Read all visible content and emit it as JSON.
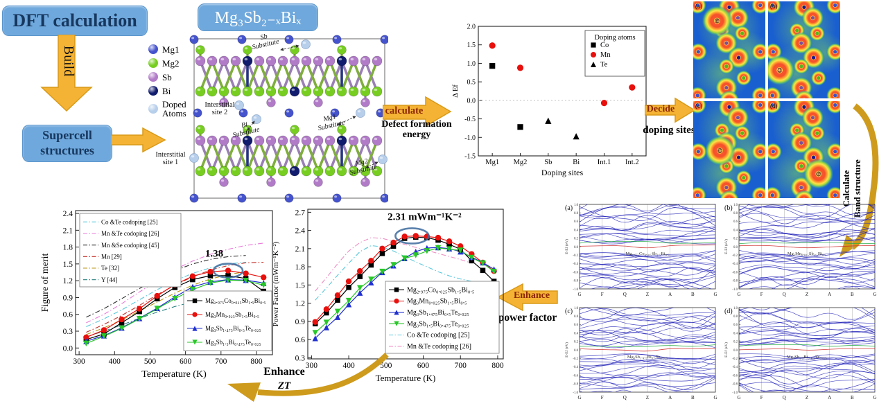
{
  "workflow": {
    "dft_label": "DFT calculation",
    "build_label": "Build",
    "supercell_lines": [
      "Supercell",
      "structures"
    ],
    "formula_title": "Mg₃Sb₂₋ₓBiₓ",
    "calculate_label": "calculate",
    "calculate_sub_lines": [
      "Defect formation",
      "energy"
    ],
    "decide_label": "Decide",
    "decide_sub": "doping sites",
    "band_arrow_lines": [
      "Calculate",
      "Band structure"
    ],
    "enhance_pf_label": "Enhance",
    "enhance_pf_sub": "power factor",
    "enhance_zt_lines": [
      "Enhance",
      "ZT"
    ]
  },
  "colors": {
    "arrow_gold": "#F5B335",
    "box_blue": "#6FA8DC",
    "box_text_navy": "#17375E",
    "arrow_text_maroon": "#8B2703",
    "annotation_ellipse_blue": "#3D6B9E"
  },
  "crystal": {
    "legend": [
      {
        "label": "Mg1",
        "color": "#4553CD"
      },
      {
        "label": "Mg2",
        "color": "#77CE21"
      },
      {
        "label": "Sb",
        "color": "#B17BC8"
      },
      {
        "label": "Bi",
        "color": "#111C6E"
      },
      {
        "label": "Doped Atoms",
        "color": "#B7CFEB"
      }
    ],
    "annotations": [
      {
        "line1": "Sb",
        "line2": "Substitute"
      },
      {
        "line1": "Interstitial",
        "line2": "site 2"
      },
      {
        "line1": "Bi",
        "line2": "Substitute"
      },
      {
        "line1": "Mg1",
        "line2": "Substitute"
      },
      {
        "line1": "Mg2",
        "line2": "Substitute"
      },
      {
        "line1": "Interstitial",
        "line2": "site 1"
      }
    ]
  },
  "charge_density": {
    "panels": [
      {
        "label": "(a)",
        "atom": "Co"
      },
      {
        "label": "(b)",
        "atom": "Mn"
      },
      {
        "label": "(c)",
        "atom": "Te"
      },
      {
        "label": "(d)",
        "atom": "Te"
      }
    ]
  },
  "band_charts": {
    "ylabel": "E-Ef (eV)",
    "ylim": [
      -1.0,
      1.0
    ],
    "xticks": [
      "G",
      "F",
      "Q",
      "Z",
      "A",
      "B",
      "G"
    ],
    "panels": [
      {
        "label": "(a)",
        "formula": "Mg₂.₉₇₅Co₀.₀₂₅Sb₁.₅Bi₀.₅"
      },
      {
        "label": "(b)",
        "formula": "Mg₃Mn₀.₀₂₅Sb₁.₅Bi₀.₅"
      },
      {
        "label": "(c)",
        "formula": "Mg₃Sb₁.₄₇₅Bi₀.₅Te₀.₀₂₅"
      },
      {
        "label": "(d)",
        "formula": "Mg₃Sb₁.₅Bi₀.₄₇₅Te₀.₀₂₅"
      }
    ]
  },
  "chart_data": [
    {
      "id": "defect_formation",
      "type": "scatter",
      "xlabel": "Doping sites",
      "ylabel": "Δ Ef",
      "legend_title": "Doping atoms",
      "categories": [
        "Mg1",
        "Mg2",
        "Sb",
        "Bi",
        "Int.1",
        "Int.2"
      ],
      "ylim": [
        -1.5,
        2.0
      ],
      "yticks": [
        2.0,
        1.5,
        1.0,
        0.5,
        0.0,
        -0.5,
        -1.0,
        -1.5
      ],
      "zero_line": true,
      "series": [
        {
          "name": "Co",
          "marker": "square",
          "color": "#000000",
          "values": [
            0.93,
            -0.72,
            null,
            null,
            null,
            null
          ]
        },
        {
          "name": "Mn",
          "marker": "circle",
          "color": "#E8100C",
          "values": [
            1.48,
            0.88,
            null,
            null,
            -0.07,
            0.35
          ]
        },
        {
          "name": "Te",
          "marker": "triangle",
          "color": "#000000",
          "values": [
            null,
            null,
            -0.55,
            -0.97,
            null,
            null
          ]
        }
      ]
    },
    {
      "id": "figure_of_merit",
      "type": "line",
      "xlabel": "Temperature (K)",
      "ylabel": "Figure of merit",
      "xlim": [
        290,
        845
      ],
      "ylim": [
        -0.12,
        2.45
      ],
      "xticks": [
        300,
        400,
        500,
        600,
        700,
        800
      ],
      "yticks": [
        0.0,
        0.3,
        0.6,
        0.9,
        1.2,
        1.5,
        1.8,
        2.1,
        2.4
      ],
      "x": [
        320,
        370,
        420,
        470,
        520,
        570,
        620,
        670,
        720,
        770,
        820
      ],
      "annotation": {
        "text": "1.38",
        "x": 720,
        "y": 1.38
      },
      "series": [
        {
          "name": "Mg₂.₉₇₅Co₀.₀₂₅Sb₁.₅Bi₀.₅",
          "marker": "square",
          "color": "#000000",
          "values": [
            0.15,
            0.25,
            0.45,
            0.65,
            0.88,
            1.08,
            1.22,
            1.29,
            1.29,
            1.24,
            1.01
          ]
        },
        {
          "name": "Mg₃Mn₀.₀₂₅Sb₁.₅Bi₀.₅",
          "marker": "circle",
          "color": "#E8100C",
          "values": [
            0.19,
            0.32,
            0.51,
            0.7,
            0.93,
            1.13,
            1.28,
            1.36,
            1.38,
            1.33,
            1.26
          ]
        },
        {
          "name": "Mg₃Sb₁.₄₇₅Bi₀.₅Te₀.₀₂₅",
          "marker": "triangle",
          "color": "#2030D0",
          "values": [
            0.12,
            0.22,
            0.36,
            0.53,
            0.71,
            0.91,
            1.09,
            1.18,
            1.22,
            1.21,
            1.16
          ]
        },
        {
          "name": "Mg₃Sb₁.₅Bi₀.₄₇₅Te₀.₀₂₅",
          "marker": "triangle-down",
          "color": "#28C828",
          "values": [
            0.08,
            0.21,
            0.35,
            0.52,
            0.7,
            0.88,
            1.04,
            1.16,
            1.21,
            1.2,
            1.12
          ]
        },
        {
          "name": "Co &Te codoping [25]",
          "dash": true,
          "color": "#58C8DC",
          "values": [
            0.38,
            0.52,
            0.68,
            0.86,
            1.04,
            1.2,
            1.33,
            1.43,
            1.5,
            1.53,
            null
          ]
        },
        {
          "name": "Mn &Te codoping [26]",
          "dash": true,
          "color": "#E878D8",
          "values": [
            0.45,
            0.6,
            0.79,
            1.0,
            1.2,
            1.4,
            1.55,
            1.67,
            1.76,
            1.83,
            1.87
          ]
        },
        {
          "name": "Mn &Se codoping [45]",
          "dash": true,
          "color": "#303030",
          "values": [
            0.55,
            0.7,
            0.88,
            1.06,
            1.24,
            1.38,
            1.5,
            1.58,
            1.63,
            1.65,
            null
          ]
        },
        {
          "name": "Mn [29]",
          "dash": true,
          "color": "#C03028",
          "values": [
            0.28,
            0.42,
            0.58,
            0.76,
            0.95,
            1.12,
            1.27,
            1.39,
            1.47,
            1.52,
            1.53
          ]
        },
        {
          "name": "Te [32]",
          "dash": true,
          "color": "#B89410",
          "values": [
            0.24,
            0.36,
            0.5,
            0.66,
            0.82,
            0.98,
            1.12,
            1.23,
            1.31,
            1.36,
            null
          ]
        },
        {
          "name": "Y [44]",
          "dash": true,
          "color": "#2A8080",
          "values": [
            0.2,
            0.3,
            0.41,
            0.53,
            0.64,
            0.74,
            0.82,
            0.88,
            0.9,
            null,
            null
          ]
        }
      ]
    },
    {
      "id": "power_factor",
      "type": "line",
      "xlabel": "Temperature (K)",
      "ylabel": "Power Factor (mWm⁻¹K⁻²)",
      "xlim": [
        290,
        815
      ],
      "ylim": [
        0.28,
        2.75
      ],
      "xticks": [
        300,
        400,
        500,
        600,
        700,
        800
      ],
      "yticks": [
        0.3,
        0.6,
        0.9,
        1.2,
        1.5,
        1.8,
        2.1,
        2.4,
        2.7
      ],
      "x": [
        310,
        340,
        370,
        400,
        430,
        460,
        490,
        520,
        550,
        580,
        610,
        640,
        670,
        700,
        730,
        760,
        790
      ],
      "annotation": {
        "text": "2.31 mWm⁻¹K⁻²",
        "x": 570,
        "y": 2.31
      },
      "series": [
        {
          "name": "Mg₂.₉₇₅Co₀.₀₂₅Sb₁.₅Bi₀.₅",
          "marker": "square",
          "color": "#000000",
          "values": [
            0.86,
            1.04,
            1.25,
            1.46,
            1.64,
            1.83,
            2.02,
            2.14,
            2.27,
            2.29,
            2.28,
            2.24,
            2.17,
            2.09,
            1.9,
            1.74,
            1.56
          ]
        },
        {
          "name": "Mg₃Mn₀.₀₂₅Sb₁.₅Bi₀.₅",
          "marker": "circle",
          "color": "#E8100C",
          "values": [
            0.89,
            1.1,
            1.33,
            1.56,
            1.73,
            1.9,
            2.1,
            2.2,
            2.3,
            2.31,
            2.3,
            2.28,
            2.22,
            2.14,
            2.01,
            1.87,
            1.73
          ]
        },
        {
          "name": "Mg₃Sb₁.₄₇₅Bi₀.₅Te₀.₀₂₅",
          "marker": "triangle",
          "color": "#2030D0",
          "values": [
            0.62,
            0.8,
            0.97,
            1.18,
            1.37,
            1.54,
            1.71,
            1.82,
            1.94,
            2.05,
            2.11,
            2.12,
            2.1,
            2.05,
            1.96,
            1.87,
            1.76
          ]
        },
        {
          "name": "Mg₃Sb₁.₅Bi₀.₄₇₅Te₀.₀₂₅",
          "marker": "triangle-down",
          "color": "#28C828",
          "values": [
            0.71,
            0.88,
            1.06,
            1.24,
            1.45,
            1.59,
            1.72,
            1.83,
            1.94,
            1.99,
            2.06,
            2.11,
            2.09,
            2.07,
            1.95,
            1.86,
            1.72
          ]
        },
        {
          "name": "Co &Te codoping [25]",
          "dash": true,
          "color": "#58C8DC",
          "values": [
            1.25,
            1.45,
            1.66,
            1.86,
            2.05,
            2.15,
            2.13,
            2.06,
            1.97,
            1.88,
            1.8,
            1.72,
            1.65,
            1.6,
            1.56,
            null,
            null
          ]
        },
        {
          "name": "Mn &Te codoping [26]",
          "dash": true,
          "color": "#EE8FC4",
          "values": [
            1.4,
            1.62,
            1.85,
            2.06,
            2.2,
            2.28,
            2.27,
            2.22,
            2.17,
            2.12,
            2.07,
            2.02,
            1.97,
            1.92,
            1.86,
            null,
            null
          ]
        }
      ]
    }
  ]
}
